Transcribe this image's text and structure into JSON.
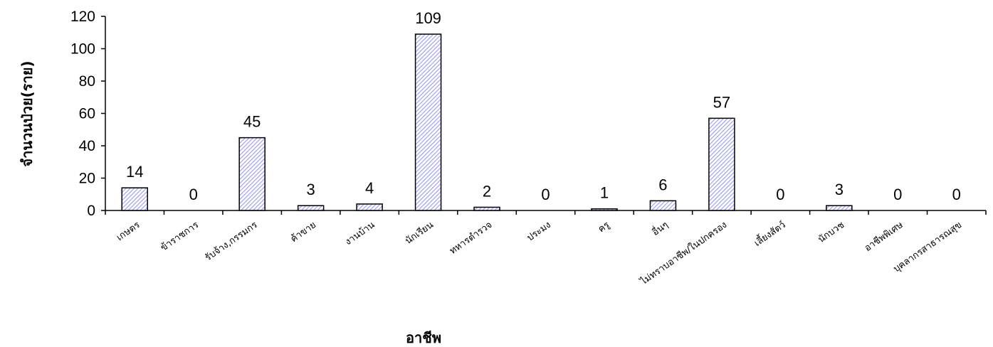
{
  "chart_data": {
    "type": "bar",
    "title": "",
    "xlabel": "อาชีพ",
    "ylabel": "จำนวนป่วย(ราย)",
    "ylim": [
      0,
      120
    ],
    "yticks": [
      0,
      20,
      40,
      60,
      80,
      100,
      120
    ],
    "grid": false,
    "legend": "none",
    "categories": [
      "เกษตร",
      "ข้าราชการ",
      "รับจ้าง,กรรมกร",
      "ค้าขาย",
      "งานบ้าน",
      "นักเรียน",
      "ทหารตำรวจ",
      "ประมง",
      "ครู",
      "อื่นๆ",
      "ไม่ทราบอาชีพ/ในปกครอง",
      "เลี้ยงสัตว์",
      "นักบวช",
      "อาชีพพิเศษ",
      "บุคลากรสาธารณสุข"
    ],
    "values": [
      14,
      0,
      45,
      3,
      4,
      109,
      2,
      0,
      1,
      6,
      57,
      0,
      3,
      0,
      0
    ],
    "colors": {
      "bar_hatch": "#9999ff",
      "bar_fill": "#ffffff",
      "bar_border": "#000000",
      "axis": "#000000"
    }
  }
}
